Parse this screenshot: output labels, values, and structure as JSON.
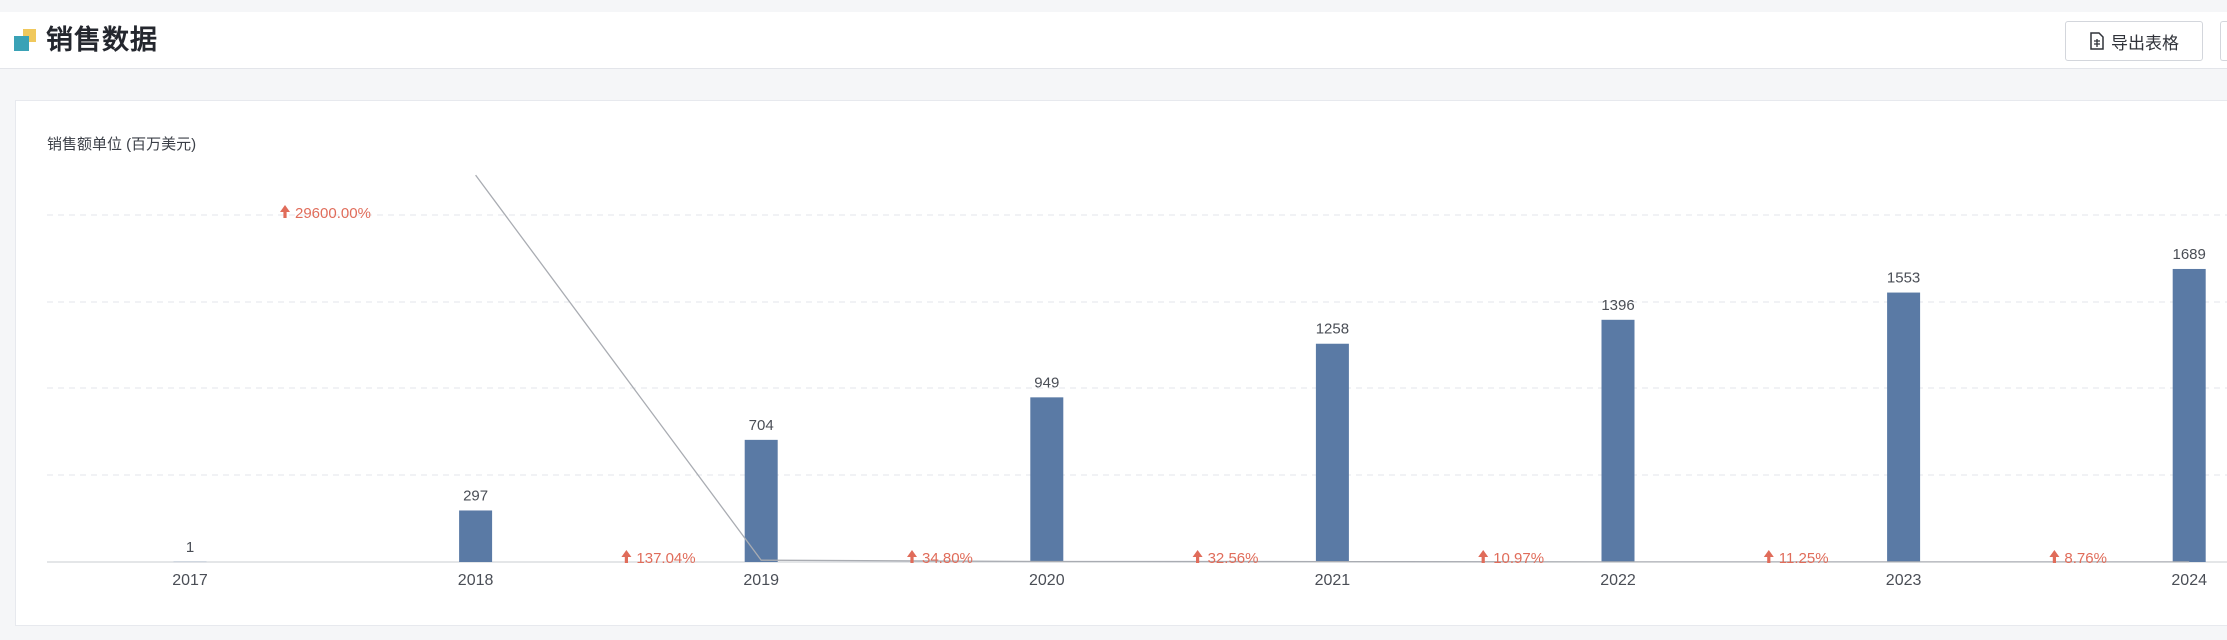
{
  "header": {
    "title": "销售数据",
    "export_label": "导出表格",
    "export_icon": "document-icon"
  },
  "chart_data": {
    "type": "bar",
    "ylabel": "销售额单位 (百万美元)",
    "categories": [
      "2017",
      "2018",
      "2019",
      "2020",
      "2021",
      "2022",
      "2023",
      "2024"
    ],
    "series": [
      {
        "values": [
          1,
          297,
          704,
          949,
          1258,
          1396,
          1553,
          1689
        ]
      }
    ],
    "growth": {
      "type": "line",
      "labels": [
        "29600.00%",
        "137.04%",
        "34.80%",
        "32.56%",
        "10.97%",
        "11.25%",
        "8.76%"
      ],
      "values": [
        29600.0,
        137.04,
        34.8,
        32.56,
        10.97,
        11.25,
        8.76
      ]
    },
    "grid": true,
    "colors": {
      "bar": "#5a7aa5",
      "growth_text": "#e06c5a",
      "trend_line": "#a9acb2"
    }
  }
}
